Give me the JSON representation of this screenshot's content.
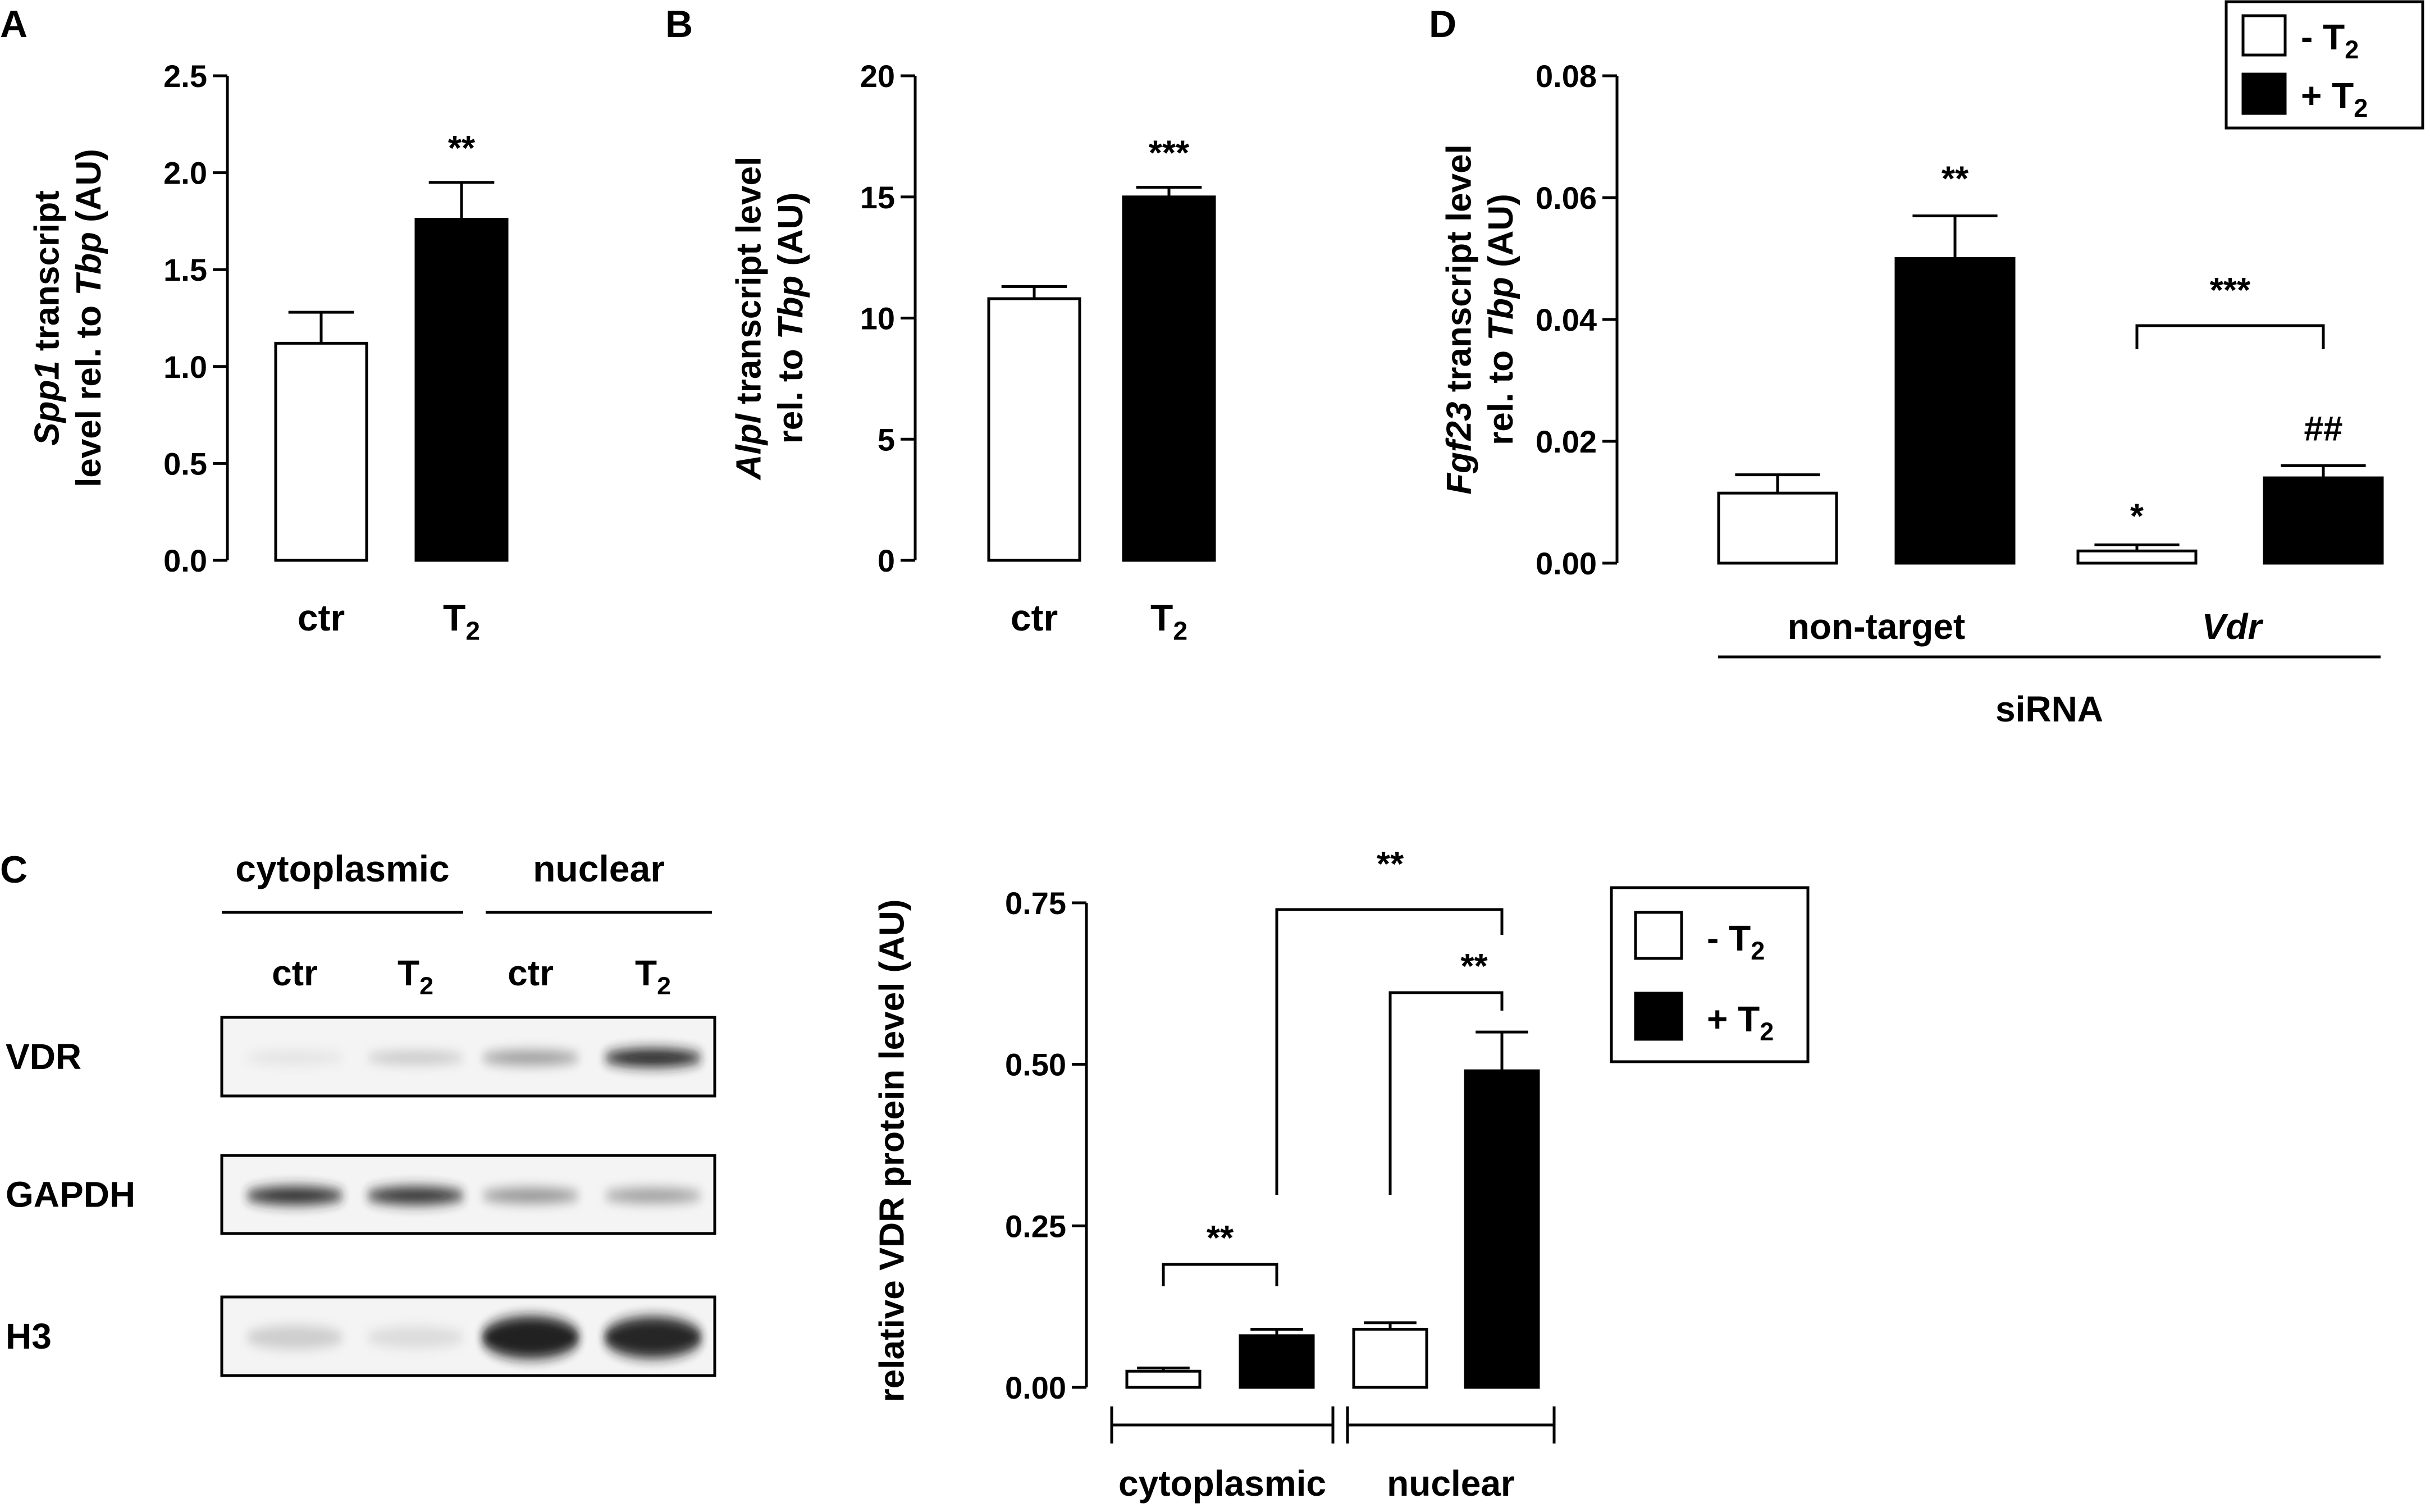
{
  "panels": {
    "A": {
      "letter": "A"
    },
    "B": {
      "letter": "B"
    },
    "C": {
      "letter": "C"
    },
    "D": {
      "letter": "D"
    }
  },
  "legend": {
    "minus": "- T",
    "plus": "+ T",
    "sub": "2"
  },
  "blot": {
    "groups": [
      "cytoplasmic",
      "nuclear"
    ],
    "lane_labels": [
      {
        "text": "ctr",
        "sub": ""
      },
      {
        "text": "T",
        "sub": "2"
      },
      {
        "text": "ctr",
        "sub": ""
      },
      {
        "text": "T",
        "sub": "2"
      }
    ],
    "rows": [
      {
        "label": "VDR",
        "intensities": [
          0.05,
          0.18,
          0.4,
          0.95
        ]
      },
      {
        "label": "GAPDH",
        "intensities": [
          0.92,
          0.9,
          0.45,
          0.4
        ]
      },
      {
        "label": "H3",
        "intensities": [
          0.15,
          0.08,
          1.0,
          0.95
        ]
      }
    ]
  },
  "chart_data": [
    {
      "panel": "A",
      "type": "bar",
      "categories": [
        {
          "text": "ctr",
          "sub": ""
        },
        {
          "text": "T",
          "sub": "2"
        }
      ],
      "values": [
        1.12,
        1.76
      ],
      "errors": [
        0.16,
        0.19
      ],
      "fills": [
        "#ffffff",
        "#000000"
      ],
      "sig": [
        "",
        "**"
      ],
      "ylabel": [
        [
          {
            "t": "Spp1",
            "i": true
          },
          {
            "t": " transcript",
            "i": false
          }
        ],
        [
          {
            "t": "level rel. to ",
            "i": false
          },
          {
            "t": "Tbp",
            "i": true
          },
          {
            "t": " (AU)",
            "i": false
          }
        ]
      ],
      "ylim": [
        0,
        2.5
      ],
      "yticks": [
        "0.0",
        "0.5",
        "1.0",
        "1.5",
        "2.0",
        "2.5"
      ]
    },
    {
      "panel": "B",
      "type": "bar",
      "categories": [
        {
          "text": "ctr",
          "sub": ""
        },
        {
          "text": "T",
          "sub": "2"
        }
      ],
      "values": [
        10.8,
        15.0
      ],
      "errors": [
        0.5,
        0.4
      ],
      "fills": [
        "#ffffff",
        "#000000"
      ],
      "sig": [
        "",
        "***"
      ],
      "ylabel": [
        [
          {
            "t": "Alpl",
            "i": true
          },
          {
            "t": " transcript level",
            "i": false
          }
        ],
        [
          {
            "t": "rel. to ",
            "i": false
          },
          {
            "t": "Tbp",
            "i": true
          },
          {
            "t": " (AU)",
            "i": false
          }
        ]
      ],
      "ylim": [
        0,
        20
      ],
      "yticks": [
        "0",
        "5",
        "10",
        "15",
        "20"
      ]
    },
    {
      "panel": "D",
      "type": "bar",
      "groups": [
        {
          "label": "non-target",
          "italic": false
        },
        {
          "label": "Vdr",
          "italic": true
        }
      ],
      "xlabel": "siRNA",
      "series": [
        {
          "name": "- T2",
          "fill": "#ffffff",
          "values": [
            0.0115,
            0.002
          ],
          "errors": [
            0.003,
            0.001
          ],
          "sig": [
            "",
            "*"
          ]
        },
        {
          "name": "+ T2",
          "fill": "#000000",
          "values": [
            0.05,
            0.014
          ],
          "errors": [
            0.007,
            0.002
          ],
          "sig": [
            "**",
            "##"
          ]
        }
      ],
      "bracket": {
        "label": "***"
      },
      "ylabel": [
        [
          {
            "t": "Fgf23",
            "i": true
          },
          {
            "t": " transcript level",
            "i": false
          }
        ],
        [
          {
            "t": "rel. to ",
            "i": false
          },
          {
            "t": "Tbp",
            "i": true
          },
          {
            "t": " (AU)",
            "i": false
          }
        ]
      ],
      "ylim": [
        0,
        0.08
      ],
      "yticks": [
        "0.00",
        "0.02",
        "0.04",
        "0.06",
        "0.08"
      ]
    },
    {
      "panel": "C",
      "type": "bar",
      "groups": [
        {
          "label": "cytoplasmic",
          "italic": false
        },
        {
          "label": "nuclear",
          "italic": false
        }
      ],
      "series": [
        {
          "name": "- T2",
          "fill": "#ffffff",
          "values": [
            0.025,
            0.09
          ],
          "errors": [
            0.005,
            0.01
          ]
        },
        {
          "name": "+ T2",
          "fill": "#000000",
          "values": [
            0.08,
            0.49
          ],
          "errors": [
            0.01,
            0.06
          ]
        }
      ],
      "brackets": [
        "**",
        "**",
        "**"
      ],
      "ylabel": [
        [
          {
            "t": "relative VDR protein level (AU)",
            "i": false
          }
        ]
      ],
      "ylim": [
        0,
        0.75
      ],
      "yticks": [
        "0.00",
        "0.25",
        "0.50",
        "0.75"
      ]
    }
  ]
}
